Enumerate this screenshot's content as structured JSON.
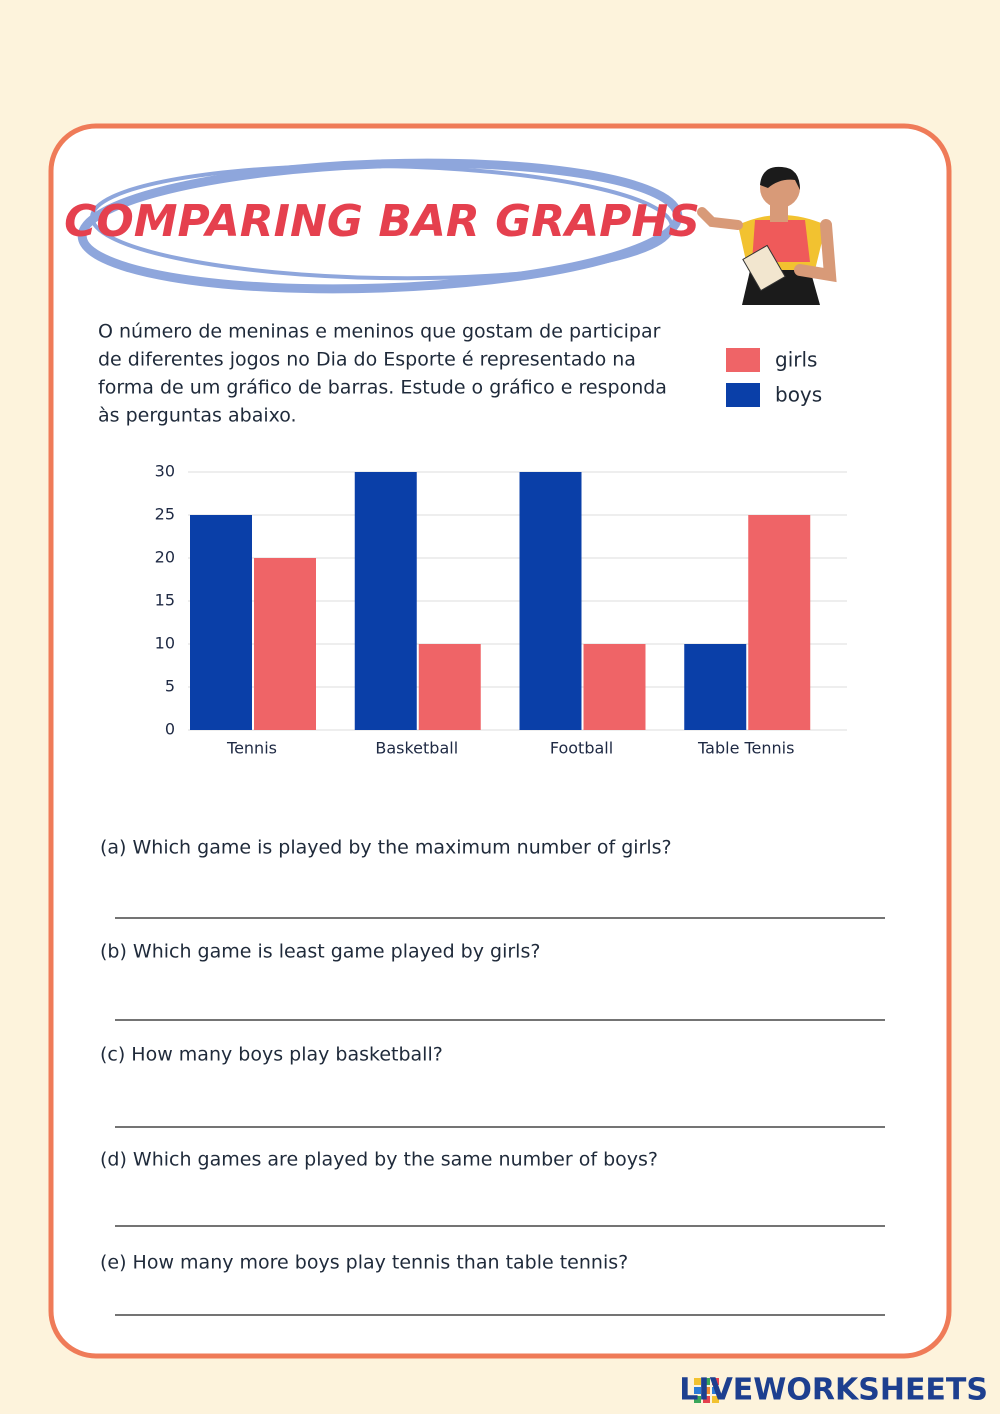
{
  "title": "COMPARING BAR GRAPHS",
  "intro_lines": [
    "O número de meninas e meninos que gostam de participar",
    "de diferentes jogos no Dia do Esporte é representado na",
    "forma de um gráfico de barras. Estude o gráfico e responda",
    "às perguntas abaixo."
  ],
  "chart_data": {
    "type": "bar",
    "categories": [
      "Tennis",
      "Basketball",
      "Football",
      "Table Tennis"
    ],
    "series": [
      {
        "name": "girls",
        "color": "#ef6467",
        "values": [
          20,
          10,
          10,
          25
        ]
      },
      {
        "name": "boys",
        "color": "#0a3fa8",
        "values": [
          25,
          30,
          30,
          10
        ]
      }
    ],
    "ylim": [
      0,
      30
    ],
    "yticks": [
      0,
      5,
      10,
      15,
      20,
      25,
      30
    ],
    "grid": true
  },
  "questions": [
    "(a) Which game is played by the maximum number of girls?",
    "(b) Which game is least game played by girls?",
    "(c) How many boys play basketball?",
    "(d) Which games are played by the same number of boys?",
    "(e) How many more boys play tennis than table tennis?"
  ],
  "footer": "LIVEWORKSHEETS"
}
